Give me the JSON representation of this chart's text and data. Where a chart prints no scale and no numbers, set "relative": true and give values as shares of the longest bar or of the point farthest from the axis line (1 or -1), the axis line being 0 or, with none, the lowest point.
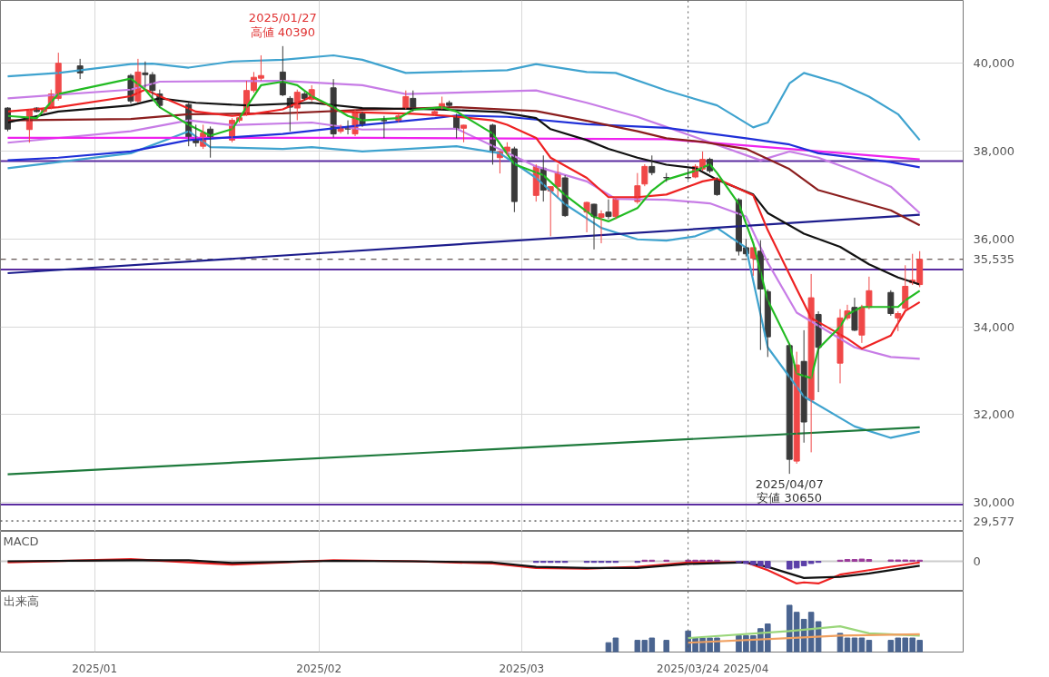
{
  "chart_data": [
    {
      "type": "candlestick",
      "xlim": [
        "2024-12-19",
        "2025-05-01"
      ],
      "ylim": [
        29340,
        41430
      ],
      "xticks": [
        {
          "value": "2025-01-01",
          "label": null
        },
        {
          "value": "2025-02-01",
          "label": null
        },
        {
          "value": "2025-03-01",
          "label": null
        },
        {
          "value": "2025-04-01",
          "label": null
        }
      ],
      "yticks": [
        {
          "value": 30000,
          "label": "30,000"
        },
        {
          "value": 32000,
          "label": "32,000"
        },
        {
          "value": 34000,
          "label": "34,000"
        },
        {
          "value": 36000,
          "label": "36,000"
        },
        {
          "value": 38000,
          "label": "38,000"
        },
        {
          "value": 40000,
          "label": "40,000"
        }
      ],
      "grid": true,
      "tick_labels": "y",
      "x": [
        "2024-12-20",
        "2024-12-23",
        "2024-12-24",
        "2024-12-25",
        "2024-12-26",
        "2024-12-27",
        "2024-12-30",
        "2025-01-06",
        "2025-01-07",
        "2025-01-08",
        "2025-01-09",
        "2025-01-10",
        "2025-01-14",
        "2025-01-15",
        "2025-01-16",
        "2025-01-17",
        "2025-01-20",
        "2025-01-21",
        "2025-01-22",
        "2025-01-23",
        "2025-01-24",
        "2025-01-27",
        "2025-01-28",
        "2025-01-29",
        "2025-01-30",
        "2025-01-31",
        "2025-02-03",
        "2025-02-04",
        "2025-02-05",
        "2025-02-06",
        "2025-02-07",
        "2025-02-10",
        "2025-02-12",
        "2025-02-13",
        "2025-02-14",
        "2025-02-17",
        "2025-02-18",
        "2025-02-19",
        "2025-02-20",
        "2025-02-21",
        "2025-02-25",
        "2025-02-26",
        "2025-02-27",
        "2025-02-28",
        "2025-03-03",
        "2025-03-04",
        "2025-03-05",
        "2025-03-06",
        "2025-03-07",
        "2025-03-10",
        "2025-03-11",
        "2025-03-12",
        "2025-03-13",
        "2025-03-14",
        "2025-03-17",
        "2025-03-18",
        "2025-03-19",
        "2025-03-21",
        "2025-03-24",
        "2025-03-25",
        "2025-03-26",
        "2025-03-27",
        "2025-03-28",
        "2025-03-31",
        "2025-04-01",
        "2025-04-02",
        "2025-04-03",
        "2025-04-04",
        "2025-04-07",
        "2025-04-08",
        "2025-04-09",
        "2025-04-10",
        "2025-04-11",
        "2025-04-14",
        "2025-04-15",
        "2025-04-16",
        "2025-04-17",
        "2025-04-18",
        "2025-04-21",
        "2025-04-22",
        "2025-04-23",
        "2025-04-24",
        "2025-04-25"
      ],
      "ohlc": [
        [
          38980,
          39000,
          38450,
          38500
        ],
        [
          38490,
          38950,
          38190,
          38940
        ],
        [
          38980,
          39000,
          38880,
          38900
        ],
        [
          38900,
          39000,
          38860,
          38960
        ],
        [
          39000,
          39400,
          38950,
          39300
        ],
        [
          39200,
          40240,
          39150,
          40000
        ],
        [
          39940,
          40100,
          39640,
          39780
        ],
        [
          39720,
          39760,
          39080,
          39140
        ],
        [
          39140,
          40100,
          39100,
          39800
        ],
        [
          39780,
          40040,
          39440,
          39740
        ],
        [
          39740,
          39800,
          39200,
          39380
        ],
        [
          39300,
          39400,
          38990,
          39040
        ],
        [
          39060,
          39100,
          38110,
          38310
        ],
        [
          38250,
          38600,
          38100,
          38190
        ],
        [
          38110,
          38600,
          38050,
          38410
        ],
        [
          38500,
          38560,
          37850,
          38310
        ],
        [
          38250,
          38750,
          38200,
          38700
        ],
        [
          38700,
          38800,
          38650,
          38760
        ],
        [
          38840,
          39600,
          38800,
          39380
        ],
        [
          39380,
          39800,
          39330,
          39680
        ],
        [
          39660,
          40180,
          39600,
          39720
        ],
        [
          39800,
          40390,
          39250,
          39280
        ],
        [
          39200,
          39250,
          38450,
          39000
        ],
        [
          38980,
          39400,
          38700,
          39340
        ],
        [
          39300,
          39350,
          39150,
          39200
        ],
        [
          39180,
          39500,
          39130,
          39400
        ],
        [
          39440,
          39640,
          38310,
          38390
        ],
        [
          38450,
          38600,
          38400,
          38550
        ],
        [
          38550,
          38700,
          38380,
          38500
        ],
        [
          38390,
          38950,
          38340,
          38880
        ],
        [
          38850,
          38900,
          38550,
          38600
        ],
        [
          38700,
          38800,
          38300,
          38690
        ],
        [
          38700,
          38850,
          38650,
          38800
        ],
        [
          38980,
          39380,
          38950,
          39240
        ],
        [
          39200,
          39380,
          38900,
          38940
        ],
        [
          38850,
          38950,
          38800,
          38900
        ],
        [
          39000,
          39240,
          38950,
          39080
        ],
        [
          39100,
          39150,
          39000,
          39040
        ],
        [
          38790,
          38850,
          38290,
          38510
        ],
        [
          38520,
          38600,
          38200,
          38590
        ],
        [
          38590,
          38620,
          37690,
          38010
        ],
        [
          37850,
          38000,
          37490,
          37990
        ],
        [
          37990,
          38200,
          37900,
          38090
        ],
        [
          38050,
          38100,
          36610,
          36850
        ],
        [
          36990,
          37700,
          36850,
          37650
        ],
        [
          37610,
          37900,
          36850,
          37110
        ],
        [
          37090,
          37200,
          36060,
          37190
        ],
        [
          37190,
          37700,
          36950,
          37510
        ],
        [
          37390,
          37450,
          36500,
          36530
        ],
        [
          36610,
          36850,
          36150,
          36830
        ],
        [
          36790,
          36800,
          35760,
          36510
        ],
        [
          36490,
          36650,
          35900,
          36570
        ],
        [
          36610,
          36900,
          36450,
          36510
        ],
        [
          36510,
          36950,
          36450,
          36910
        ],
        [
          36850,
          37500,
          36800,
          37210
        ],
        [
          37250,
          37700,
          37200,
          37650
        ],
        [
          37650,
          37900,
          37450,
          37510
        ],
        [
          37400,
          37500,
          37300,
          37390
        ],
        [
          37400,
          37600,
          37350,
          37390
        ],
        [
          37410,
          37700,
          37380,
          37650
        ],
        [
          37590,
          37990,
          37550,
          37810
        ],
        [
          37810,
          37850,
          37500,
          37550
        ],
        [
          37350,
          37400,
          36980,
          37010
        ],
        [
          36890,
          36930,
          35620,
          35720
        ],
        [
          35800,
          36000,
          35600,
          35660
        ],
        [
          35560,
          35800,
          35160,
          35800
        ],
        [
          35720,
          35970,
          33470,
          34860
        ],
        [
          34800,
          34850,
          33310,
          33770
        ],
        [
          33570,
          33600,
          30650,
          30980
        ],
        [
          30940,
          33430,
          30880,
          33130
        ],
        [
          33210,
          33920,
          31360,
          31830
        ],
        [
          32330,
          35200,
          31140,
          34660
        ],
        [
          34280,
          34350,
          32510,
          33530
        ],
        [
          33170,
          34400,
          32710,
          34200
        ],
        [
          34200,
          34500,
          34150,
          34360
        ],
        [
          34440,
          34660,
          33900,
          33920
        ],
        [
          33810,
          34500,
          33630,
          34440
        ],
        [
          34440,
          35140,
          34400,
          34820
        ],
        [
          34780,
          34830,
          34250,
          34300
        ],
        [
          34200,
          34350,
          33900,
          34300
        ],
        [
          34420,
          35400,
          34380,
          34920
        ],
        [
          35000,
          35660,
          34950,
          35060
        ],
        [
          34960,
          35720,
          34900,
          35535
        ]
      ],
      "series": [
        {
          "type": "line",
          "color": "#3fa3cf",
          "x": [
            "2024-12-20",
            "2024-12-27",
            "2025-01-06",
            "2025-01-09",
            "2025-01-14",
            "2025-01-20",
            "2025-01-27",
            "2025-02-03",
            "2025-02-07",
            "2025-02-13",
            "2025-02-27",
            "2025-03-03",
            "2025-03-10",
            "2025-03-14",
            "2025-03-21",
            "2025-03-28",
            "2025-04-02",
            "2025-04-04",
            "2025-04-07",
            "2025-04-09",
            "2025-04-14",
            "2025-04-18",
            "2025-04-22",
            "2025-04-25"
          ],
          "values": [
            39700,
            39780,
            39980,
            39990,
            39900,
            40040,
            40080,
            40180,
            40080,
            39780,
            39840,
            39980,
            39800,
            39780,
            39380,
            39040,
            38540,
            38650,
            39540,
            39780,
            39540,
            39240,
            38840,
            38250
          ]
        },
        {
          "type": "line",
          "color": "#3fa3cf",
          "x": [
            "2024-12-20",
            "2025-01-06",
            "2025-01-14",
            "2025-01-17",
            "2025-01-27",
            "2025-01-31",
            "2025-02-07",
            "2025-02-20",
            "2025-02-26",
            "2025-03-03",
            "2025-03-07",
            "2025-03-12",
            "2025-03-17",
            "2025-03-21",
            "2025-03-25",
            "2025-03-28",
            "2025-04-01",
            "2025-04-04",
            "2025-04-09",
            "2025-04-16",
            "2025-04-21",
            "2025-04-25"
          ],
          "values": [
            37610,
            37950,
            38450,
            38090,
            38050,
            38090,
            37990,
            38110,
            37950,
            37390,
            36790,
            36250,
            35990,
            35960,
            36060,
            36250,
            35800,
            33530,
            32410,
            31730,
            31470,
            31610
          ]
        },
        {
          "type": "line",
          "color": "#c77ce6",
          "x": [
            "2024-12-20",
            "2025-01-06",
            "2025-01-10",
            "2025-01-27",
            "2025-02-07",
            "2025-02-13",
            "2025-03-03",
            "2025-03-10",
            "2025-03-17",
            "2025-03-21",
            "2025-04-03",
            "2025-04-07",
            "2025-04-11",
            "2025-04-16",
            "2025-04-21",
            "2025-04-25"
          ],
          "values": [
            39200,
            39400,
            39580,
            39600,
            39500,
            39300,
            39380,
            39100,
            38780,
            38550,
            37790,
            37990,
            37850,
            37550,
            37190,
            36590
          ]
        },
        {
          "type": "line",
          "color": "#c77ce6",
          "x": [
            "2024-12-20",
            "2025-01-06",
            "2025-01-14",
            "2025-01-20",
            "2025-01-31",
            "2025-02-07",
            "2025-02-20",
            "2025-03-03",
            "2025-03-10",
            "2025-03-14",
            "2025-03-21",
            "2025-03-27",
            "2025-04-01",
            "2025-04-04",
            "2025-04-08",
            "2025-04-16",
            "2025-04-21",
            "2025-04-25"
          ],
          "values": [
            38190,
            38450,
            38700,
            38590,
            38650,
            38490,
            38510,
            37650,
            37310,
            36910,
            36890,
            36810,
            36510,
            35460,
            34320,
            33530,
            33310,
            33270
          ]
        },
        {
          "type": "line",
          "color": "#1c1c8c",
          "x": [
            "2024-12-20",
            "2025-04-25"
          ],
          "values": [
            35220,
            36550
          ]
        },
        {
          "type": "line",
          "color": "#1e7a3c",
          "x": [
            "2024-12-20",
            "2025-04-25"
          ],
          "values": [
            30640,
            31710
          ]
        },
        {
          "type": "line",
          "color": "#ee22ee",
          "x": [
            "2024-12-20",
            "2025-02-07",
            "2025-03-21",
            "2025-04-07",
            "2025-04-25"
          ],
          "values": [
            38300,
            38300,
            38270,
            38050,
            37810
          ]
        },
        {
          "type": "line",
          "color": "#1f2fd8",
          "x": [
            "2024-12-20",
            "2024-12-27",
            "2025-01-06",
            "2025-01-14",
            "2025-01-27",
            "2025-02-07",
            "2025-02-17",
            "2025-02-20",
            "2025-02-27",
            "2025-03-10",
            "2025-03-21",
            "2025-04-01",
            "2025-04-07",
            "2025-04-11",
            "2025-04-21",
            "2025-04-25"
          ],
          "values": [
            37790,
            37850,
            37990,
            38250,
            38390,
            38590,
            38750,
            38810,
            38780,
            38610,
            38530,
            38290,
            38150,
            37950,
            37750,
            37630
          ]
        },
        {
          "type": "line",
          "color": "#8b1e1e",
          "x": [
            "2024-12-20",
            "2025-01-06",
            "2025-01-14",
            "2025-01-27",
            "2025-02-07",
            "2025-02-20",
            "2025-03-03",
            "2025-03-10",
            "2025-03-17",
            "2025-03-21",
            "2025-03-26",
            "2025-04-01",
            "2025-04-07",
            "2025-04-11",
            "2025-04-21",
            "2025-04-25"
          ],
          "values": [
            38700,
            38730,
            38840,
            38860,
            38940,
            39000,
            38910,
            38690,
            38450,
            38290,
            38210,
            38050,
            37590,
            37110,
            36650,
            36310
          ]
        },
        {
          "type": "line",
          "color": "#111111",
          "x": [
            "2024-12-20",
            "2024-12-27",
            "2025-01-06",
            "2025-01-10",
            "2025-01-15",
            "2025-01-22",
            "2025-01-31",
            "2025-02-07",
            "2025-02-17",
            "2025-02-26",
            "2025-03-03",
            "2025-03-05",
            "2025-03-10",
            "2025-03-13",
            "2025-03-17",
            "2025-03-21",
            "2025-03-25",
            "2025-03-28",
            "2025-04-02",
            "2025-04-04",
            "2025-04-09",
            "2025-04-14",
            "2025-04-18",
            "2025-04-22",
            "2025-04-25"
          ],
          "values": [
            38650,
            38900,
            39040,
            39200,
            39100,
            39040,
            39100,
            38980,
            38950,
            38890,
            38750,
            38500,
            38250,
            38050,
            37850,
            37690,
            37610,
            37350,
            37010,
            36590,
            36120,
            35820,
            35420,
            35120,
            34960
          ]
        },
        {
          "type": "line",
          "color": "#ee2222",
          "x": [
            "2024-12-20",
            "2024-12-27",
            "2025-01-06",
            "2025-01-08",
            "2025-01-10",
            "2025-01-15",
            "2025-01-20",
            "2025-01-23",
            "2025-01-27",
            "2025-01-31",
            "2025-02-04",
            "2025-02-07",
            "2025-02-14",
            "2025-02-19",
            "2025-02-25",
            "2025-02-27",
            "2025-03-03",
            "2025-03-05",
            "2025-03-10",
            "2025-03-13",
            "2025-03-17",
            "2025-03-21",
            "2025-03-26",
            "2025-03-28",
            "2025-04-02",
            "2025-04-04",
            "2025-04-08",
            "2025-04-10",
            "2025-04-15",
            "2025-04-17",
            "2025-04-21",
            "2025-04-23",
            "2025-04-25"
          ],
          "values": [
            38900,
            39000,
            39250,
            39400,
            39250,
            38900,
            38800,
            38850,
            38950,
            39240,
            38900,
            38880,
            38850,
            38800,
            38700,
            38600,
            38300,
            37850,
            37390,
            36950,
            36950,
            37010,
            37310,
            37370,
            36990,
            36200,
            34860,
            34200,
            33730,
            33500,
            33800,
            34360,
            34560
          ]
        },
        {
          "type": "line",
          "color": "#22bb22",
          "x": [
            "2024-12-20",
            "2024-12-24",
            "2024-12-27",
            "2025-01-06",
            "2025-01-08",
            "2025-01-10",
            "2025-01-14",
            "2025-01-17",
            "2025-01-20",
            "2025-01-22",
            "2025-01-24",
            "2025-01-27",
            "2025-01-29",
            "2025-01-31",
            "2025-02-03",
            "2025-02-05",
            "2025-02-07",
            "2025-02-12",
            "2025-02-14",
            "2025-02-18",
            "2025-02-20",
            "2025-02-25",
            "2025-02-28",
            "2025-03-04",
            "2025-03-07",
            "2025-03-11",
            "2025-03-13",
            "2025-03-17",
            "2025-03-19",
            "2025-03-21",
            "2025-03-25",
            "2025-03-27",
            "2025-03-28",
            "2025-03-31",
            "2025-04-02",
            "2025-04-04",
            "2025-04-07",
            "2025-04-08",
            "2025-04-10",
            "2025-04-11",
            "2025-04-14",
            "2025-04-15",
            "2025-04-17",
            "2025-04-22",
            "2025-04-23",
            "2025-04-25"
          ],
          "values": [
            38800,
            38750,
            39300,
            39650,
            39400,
            39000,
            38600,
            38350,
            38500,
            39000,
            39500,
            39580,
            39500,
            39250,
            39000,
            38800,
            38700,
            38750,
            38940,
            39000,
            38900,
            38400,
            37700,
            37450,
            37000,
            36500,
            36400,
            36700,
            37100,
            37350,
            37550,
            37700,
            37500,
            36800,
            35900,
            34600,
            33600,
            32930,
            32830,
            33500,
            34000,
            34280,
            34450,
            34450,
            34600,
            34820
          ]
        }
      ],
      "ref_lines": [
        {
          "axis": "y",
          "value": 37770,
          "color": "#5a2ca0",
          "line_style": "solid"
        },
        {
          "axis": "y",
          "value": 35300,
          "color": "#5a2ca0",
          "line_style": "solid"
        },
        {
          "axis": "y",
          "value": 29950,
          "color": "#5a2ca0",
          "line_style": "solid"
        },
        {
          "axis": "y",
          "value": 35535,
          "label": "35,535",
          "color": "#3b2a26",
          "line_style": "dashed"
        },
        {
          "axis": "y",
          "value": 29577,
          "label": "29,577",
          "color": "#111111",
          "line_style": "dotted"
        },
        {
          "axis": "x",
          "value": "2025-03-24",
          "color": "#555555",
          "line_style": "dotted"
        }
      ],
      "annotations": [
        {
          "text": "2025/01/27\n高値 40390",
          "x": "2025-01-27",
          "y": 40390
        },
        {
          "text": "2025/04/07\n安値 30650",
          "x": "2025-04-07",
          "y": 30650
        }
      ]
    },
    {
      "type": "line",
      "title": "MACD",
      "relative": true,
      "xlim": [
        "2024-12-19",
        "2025-05-01"
      ],
      "xticks": [
        {
          "value": "2025-01-01",
          "label": null
        },
        {
          "value": "2025-02-01",
          "label": null
        },
        {
          "value": "2025-03-01",
          "label": null
        },
        {
          "value": "2025-04-01",
          "label": null
        }
      ],
      "grid": "x",
      "tick_labels": false,
      "series": [
        {
          "type": "bar",
          "x": [
            "2025-03-03",
            "2025-03-04",
            "2025-03-05",
            "2025-03-06",
            "2025-03-07",
            "2025-03-10",
            "2025-03-11",
            "2025-03-12",
            "2025-03-13",
            "2025-03-14",
            "2025-03-17",
            "2025-03-18",
            "2025-03-19",
            "2025-03-21",
            "2025-03-24",
            "2025-03-25",
            "2025-03-26",
            "2025-03-27",
            "2025-03-28",
            "2025-03-31",
            "2025-04-01",
            "2025-04-02",
            "2025-04-03",
            "2025-04-04",
            "2025-04-07",
            "2025-04-08",
            "2025-04-09",
            "2025-04-10",
            "2025-04-11",
            "2025-04-14",
            "2025-04-15",
            "2025-04-16",
            "2025-04-17",
            "2025-04-18",
            "2025-04-21",
            "2025-04-22",
            "2025-04-23",
            "2025-04-24",
            "2025-04-25"
          ],
          "values": [
            -0.05,
            -0.05,
            -0.05,
            -0.05,
            -0.05,
            -0.05,
            -0.05,
            -0.05,
            -0.05,
            -0.05,
            -0.05,
            0.05,
            0.05,
            0.05,
            0.05,
            0.05,
            0.05,
            0.05,
            0.05,
            -0.05,
            -0.1,
            -0.15,
            -0.2,
            -0.3,
            -0.35,
            -0.3,
            -0.2,
            -0.1,
            -0.05,
            0.05,
            0.08,
            0.08,
            0.1,
            0.08,
            0.06,
            0.06,
            0.06,
            0.05,
            0.05
          ],
          "colors": [
            "#5b3fa8",
            "#5b3fa8",
            "#5b3fa8",
            "#5b3fa8",
            "#5b3fa8",
            "#5b3fa8",
            "#5b3fa8",
            "#5b3fa8",
            "#5b3fa8",
            "#5b3fa8",
            "#5b3fa8",
            "#9a3a9a",
            "#9a3a9a",
            "#9a3a9a",
            "#9a3a9a",
            "#9a3a9a",
            "#9a3a9a",
            "#9a3a9a",
            "#9a3a9a",
            "#5b3fa8",
            "#5b3fa8",
            "#5b3fa8",
            "#5b3fa8",
            "#5b3fa8",
            "#5b3fa8",
            "#5b3fa8",
            "#5b3fa8",
            "#5b3fa8",
            "#5b3fa8",
            "#9a3a9a",
            "#9a3a9a",
            "#9a3a9a",
            "#9a3a9a",
            "#9a3a9a",
            "#9a3a9a",
            "#9a3a9a",
            "#9a3a9a",
            "#9a3a9a",
            "#9a3a9a"
          ]
        },
        {
          "type": "line",
          "color": "#ee2222",
          "x": [
            "2024-12-20",
            "2025-01-06",
            "2025-01-14",
            "2025-01-20",
            "2025-02-03",
            "2025-02-14",
            "2025-02-25",
            "2025-03-03",
            "2025-03-10",
            "2025-03-17",
            "2025-03-24",
            "2025-04-01",
            "2025-04-04",
            "2025-04-08",
            "2025-04-09",
            "2025-04-11",
            "2025-04-14",
            "2025-04-18",
            "2025-04-25"
          ],
          "values": [
            -0.05,
            0.1,
            -0.05,
            -0.15,
            0.05,
            0,
            -0.1,
            -0.3,
            -0.33,
            -0.25,
            -0.05,
            -0.05,
            -0.4,
            -1.0,
            -0.95,
            -1.0,
            -0.6,
            -0.4,
            -0.05
          ]
        },
        {
          "type": "line",
          "color": "#111111",
          "x": [
            "2024-12-20",
            "2025-01-06",
            "2025-01-14",
            "2025-01-20",
            "2025-02-03",
            "2025-02-14",
            "2025-02-25",
            "2025-03-03",
            "2025-03-10",
            "2025-03-17",
            "2025-03-24",
            "2025-04-01",
            "2025-04-04",
            "2025-04-09",
            "2025-04-14",
            "2025-04-18",
            "2025-04-25"
          ],
          "values": [
            0,
            0.05,
            0.05,
            -0.08,
            0.02,
            0,
            -0.05,
            -0.25,
            -0.3,
            -0.3,
            -0.12,
            -0.05,
            -0.25,
            -0.75,
            -0.7,
            -0.55,
            -0.2
          ]
        }
      ],
      "ref_lines": [
        {
          "axis": "y",
          "value": 0,
          "label": "0",
          "color": "#cccccc",
          "line_style": "solid"
        },
        {
          "axis": "x",
          "value": "2025-03-24",
          "color": "#555555",
          "line_style": "dotted"
        }
      ]
    },
    {
      "type": "bar",
      "title": "出来高",
      "relative": true,
      "xlim": [
        "2024-12-19",
        "2025-05-01"
      ],
      "xticks": [
        {
          "value": "2025-01-01",
          "label": "2025/01"
        },
        {
          "value": "2025-02-01",
          "label": "2025/02"
        },
        {
          "value": "2025-03-01",
          "label": "2025/03"
        },
        {
          "value": "2025-04-01",
          "label": "2025/04"
        }
      ],
      "grid": "x",
      "tick_labels": "x",
      "color": "#4a6490",
      "x": [
        "2025-03-13",
        "2025-03-14",
        "2025-03-17",
        "2025-03-18",
        "2025-03-19",
        "2025-03-21",
        "2025-03-24",
        "2025-03-25",
        "2025-03-26",
        "2025-03-27",
        "2025-03-28",
        "2025-03-31",
        "2025-04-01",
        "2025-04-02",
        "2025-04-03",
        "2025-04-04",
        "2025-04-07",
        "2025-04-08",
        "2025-04-09",
        "2025-04-10",
        "2025-04-11",
        "2025-04-14",
        "2025-04-15",
        "2025-04-16",
        "2025-04-17",
        "2025-04-18",
        "2025-04-21",
        "2025-04-22",
        "2025-04-23",
        "2025-04-24",
        "2025-04-25"
      ],
      "values": [
        0.2,
        0.3,
        0.25,
        0.25,
        0.3,
        0.25,
        0.45,
        0.3,
        0.3,
        0.3,
        0.3,
        0.35,
        0.35,
        0.35,
        0.5,
        0.6,
        1.0,
        0.85,
        0.7,
        0.85,
        0.65,
        0.4,
        0.3,
        0.3,
        0.3,
        0.25,
        0.25,
        0.3,
        0.3,
        0.3,
        0.25
      ],
      "series": [
        {
          "type": "line",
          "color": "#9ad67a",
          "x": [
            "2025-03-24",
            "2025-04-07",
            "2025-04-14",
            "2025-04-18",
            "2025-04-25"
          ],
          "values": [
            0.3,
            0.45,
            0.55,
            0.4,
            0.35
          ]
        },
        {
          "type": "line",
          "color": "#f0a060",
          "x": [
            "2025-03-24",
            "2025-04-07",
            "2025-04-14",
            "2025-04-25"
          ],
          "values": [
            0.2,
            0.3,
            0.35,
            0.38
          ]
        }
      ],
      "ref_lines": [
        {
          "axis": "x",
          "value": "2025-03-24",
          "label": "2025/03/24",
          "color": "#555555",
          "line_style": "dotted"
        }
      ]
    }
  ]
}
